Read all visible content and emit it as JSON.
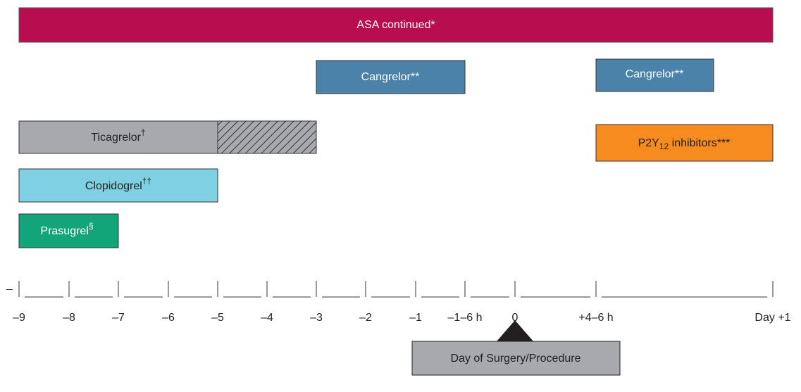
{
  "bars": [
    {
      "text": "ASA continued*"
    },
    {
      "text": "Cangrelor**"
    },
    {
      "text": "Cangrelor**"
    },
    {
      "text": "Ticagrelor",
      "sup": "†"
    },
    {
      "text": "P2Y",
      "sub": "12",
      "rest": " inhibitors***"
    },
    {
      "text": "Clopidogrel",
      "sup": "††"
    },
    {
      "text": "Prasugrel",
      "sup": "§"
    }
  ],
  "axis": {
    "lead": "_",
    "ticks": [
      "–9",
      "–8",
      "–7",
      "–6",
      "–5",
      "–4",
      "–3",
      "–2",
      "–1",
      "–1–6 h",
      "0",
      "+4–6 h",
      "Day +1"
    ]
  },
  "marker": {
    "label": "Day of Surgery/Procedure"
  }
}
